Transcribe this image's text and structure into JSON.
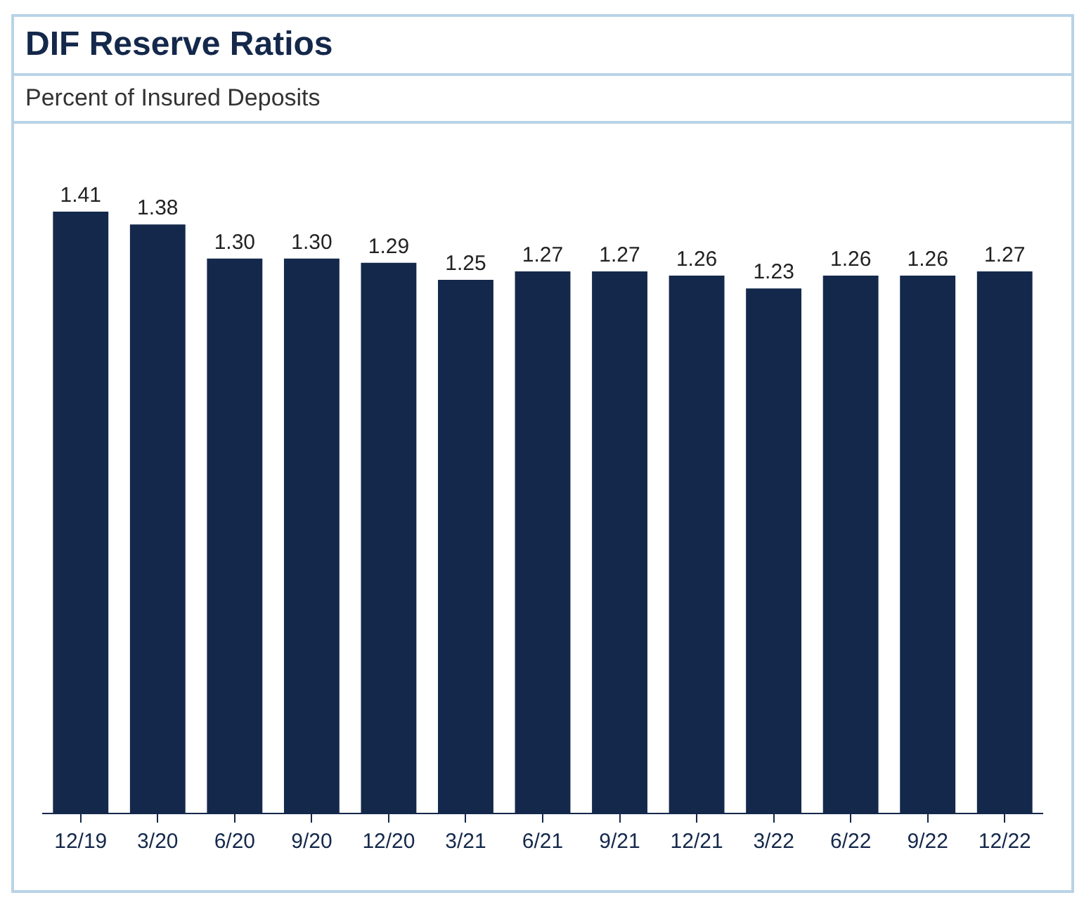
{
  "chart_data": {
    "type": "bar",
    "title": "DIF Reserve Ratios",
    "subtitle": "Percent of Insured Deposits",
    "categories": [
      "12/19",
      "3/20",
      "6/20",
      "9/20",
      "12/20",
      "3/21",
      "6/21",
      "9/21",
      "12/21",
      "3/22",
      "6/22",
      "9/22",
      "12/22"
    ],
    "values": [
      1.41,
      1.38,
      1.3,
      1.3,
      1.29,
      1.25,
      1.27,
      1.27,
      1.26,
      1.23,
      1.26,
      1.26,
      1.27
    ],
    "value_labels": [
      "1.41",
      "1.38",
      "1.30",
      "1.30",
      "1.29",
      "1.25",
      "1.27",
      "1.27",
      "1.26",
      "1.23",
      "1.26",
      "1.26",
      "1.27"
    ],
    "color": "#14284b"
  }
}
